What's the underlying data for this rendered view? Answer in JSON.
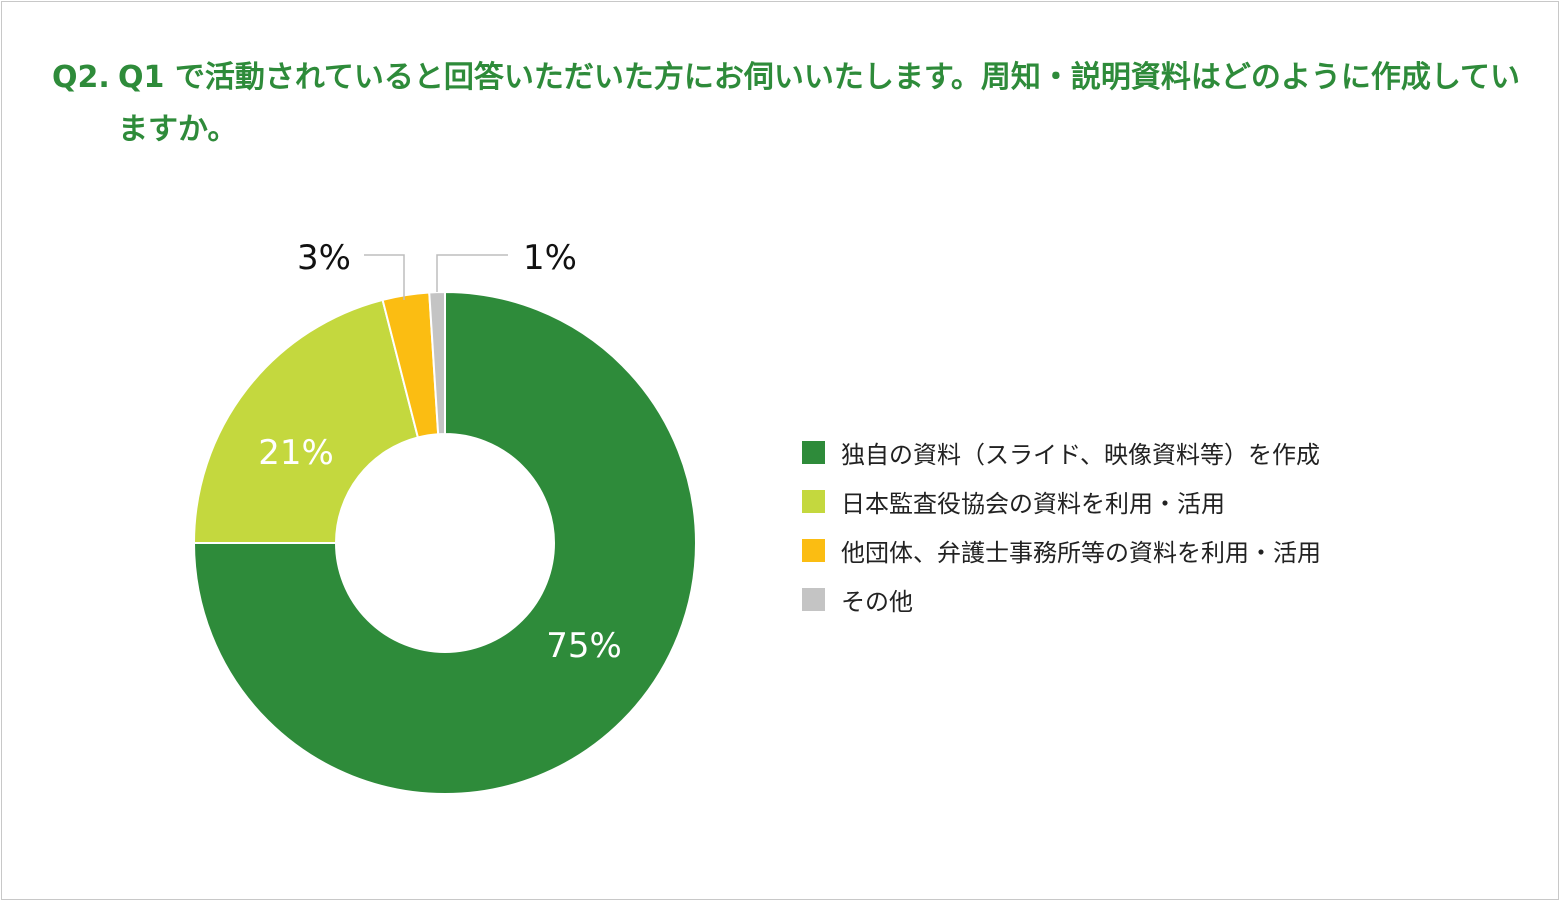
{
  "question": {
    "number": "Q2.",
    "text": "Q1 で活動されていると回答いただいた方にお伺いいたします。周知・説明資料はどのように作成していますか。"
  },
  "chart_data": {
    "type": "pie",
    "title": "Q2. Q1 で活動されていると回答いただいた方にお伺いいたします。周知・説明資料はどのように作成していますか。",
    "unit": "%",
    "legend_position": "right",
    "donut": true,
    "start": "top",
    "direction": "clockwise",
    "slices": [
      {
        "label": "独自の資料（スライド、映像資料等）を作成",
        "value": 75,
        "display": "75%",
        "color": "#2e8b3a",
        "label_color": "#ffffff"
      },
      {
        "label": "日本監査役協会の資料を利用・活用",
        "value": 21,
        "display": "21%",
        "color": "#c4d83e",
        "label_color": "#ffffff"
      },
      {
        "label": "他団体、弁護士事務所等の資料を利用・活用",
        "value": 3,
        "display": "3%",
        "color": "#fbbd12",
        "label_color": "#111111"
      },
      {
        "label": "その他",
        "value": 1,
        "display": "1%",
        "color": "#c4c4c4",
        "label_color": "#111111"
      }
    ]
  }
}
